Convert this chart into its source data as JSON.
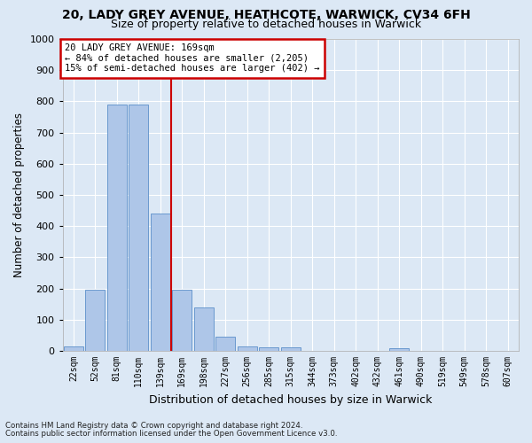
{
  "title1": "20, LADY GREY AVENUE, HEATHCOTE, WARWICK, CV34 6FH",
  "title2": "Size of property relative to detached houses in Warwick",
  "xlabel": "Distribution of detached houses by size in Warwick",
  "ylabel": "Number of detached properties",
  "categories": [
    "22sqm",
    "52sqm",
    "81sqm",
    "110sqm",
    "139sqm",
    "169sqm",
    "198sqm",
    "227sqm",
    "256sqm",
    "285sqm",
    "315sqm",
    "344sqm",
    "373sqm",
    "402sqm",
    "432sqm",
    "461sqm",
    "490sqm",
    "519sqm",
    "549sqm",
    "578sqm",
    "607sqm"
  ],
  "values": [
    15,
    195,
    790,
    790,
    440,
    195,
    140,
    45,
    15,
    12,
    12,
    0,
    0,
    0,
    0,
    8,
    0,
    0,
    0,
    0,
    0
  ],
  "bar_color": "#aec6e8",
  "bar_edge_color": "#5b8fc9",
  "vline_index": 5,
  "annotation_title": "20 LADY GREY AVENUE: 169sqm",
  "annotation_line2": "← 84% of detached houses are smaller (2,205)",
  "annotation_line3": "15% of semi-detached houses are larger (402) →",
  "annotation_box_color": "#ffffff",
  "annotation_box_edge": "#cc0000",
  "vline_color": "#cc0000",
  "ylim": [
    0,
    1000
  ],
  "yticks": [
    0,
    100,
    200,
    300,
    400,
    500,
    600,
    700,
    800,
    900,
    1000
  ],
  "footnote1": "Contains HM Land Registry data © Crown copyright and database right 2024.",
  "footnote2": "Contains public sector information licensed under the Open Government Licence v3.0.",
  "background_color": "#dce8f5",
  "grid_color": "#ffffff",
  "title1_fontsize": 10,
  "title2_fontsize": 9
}
